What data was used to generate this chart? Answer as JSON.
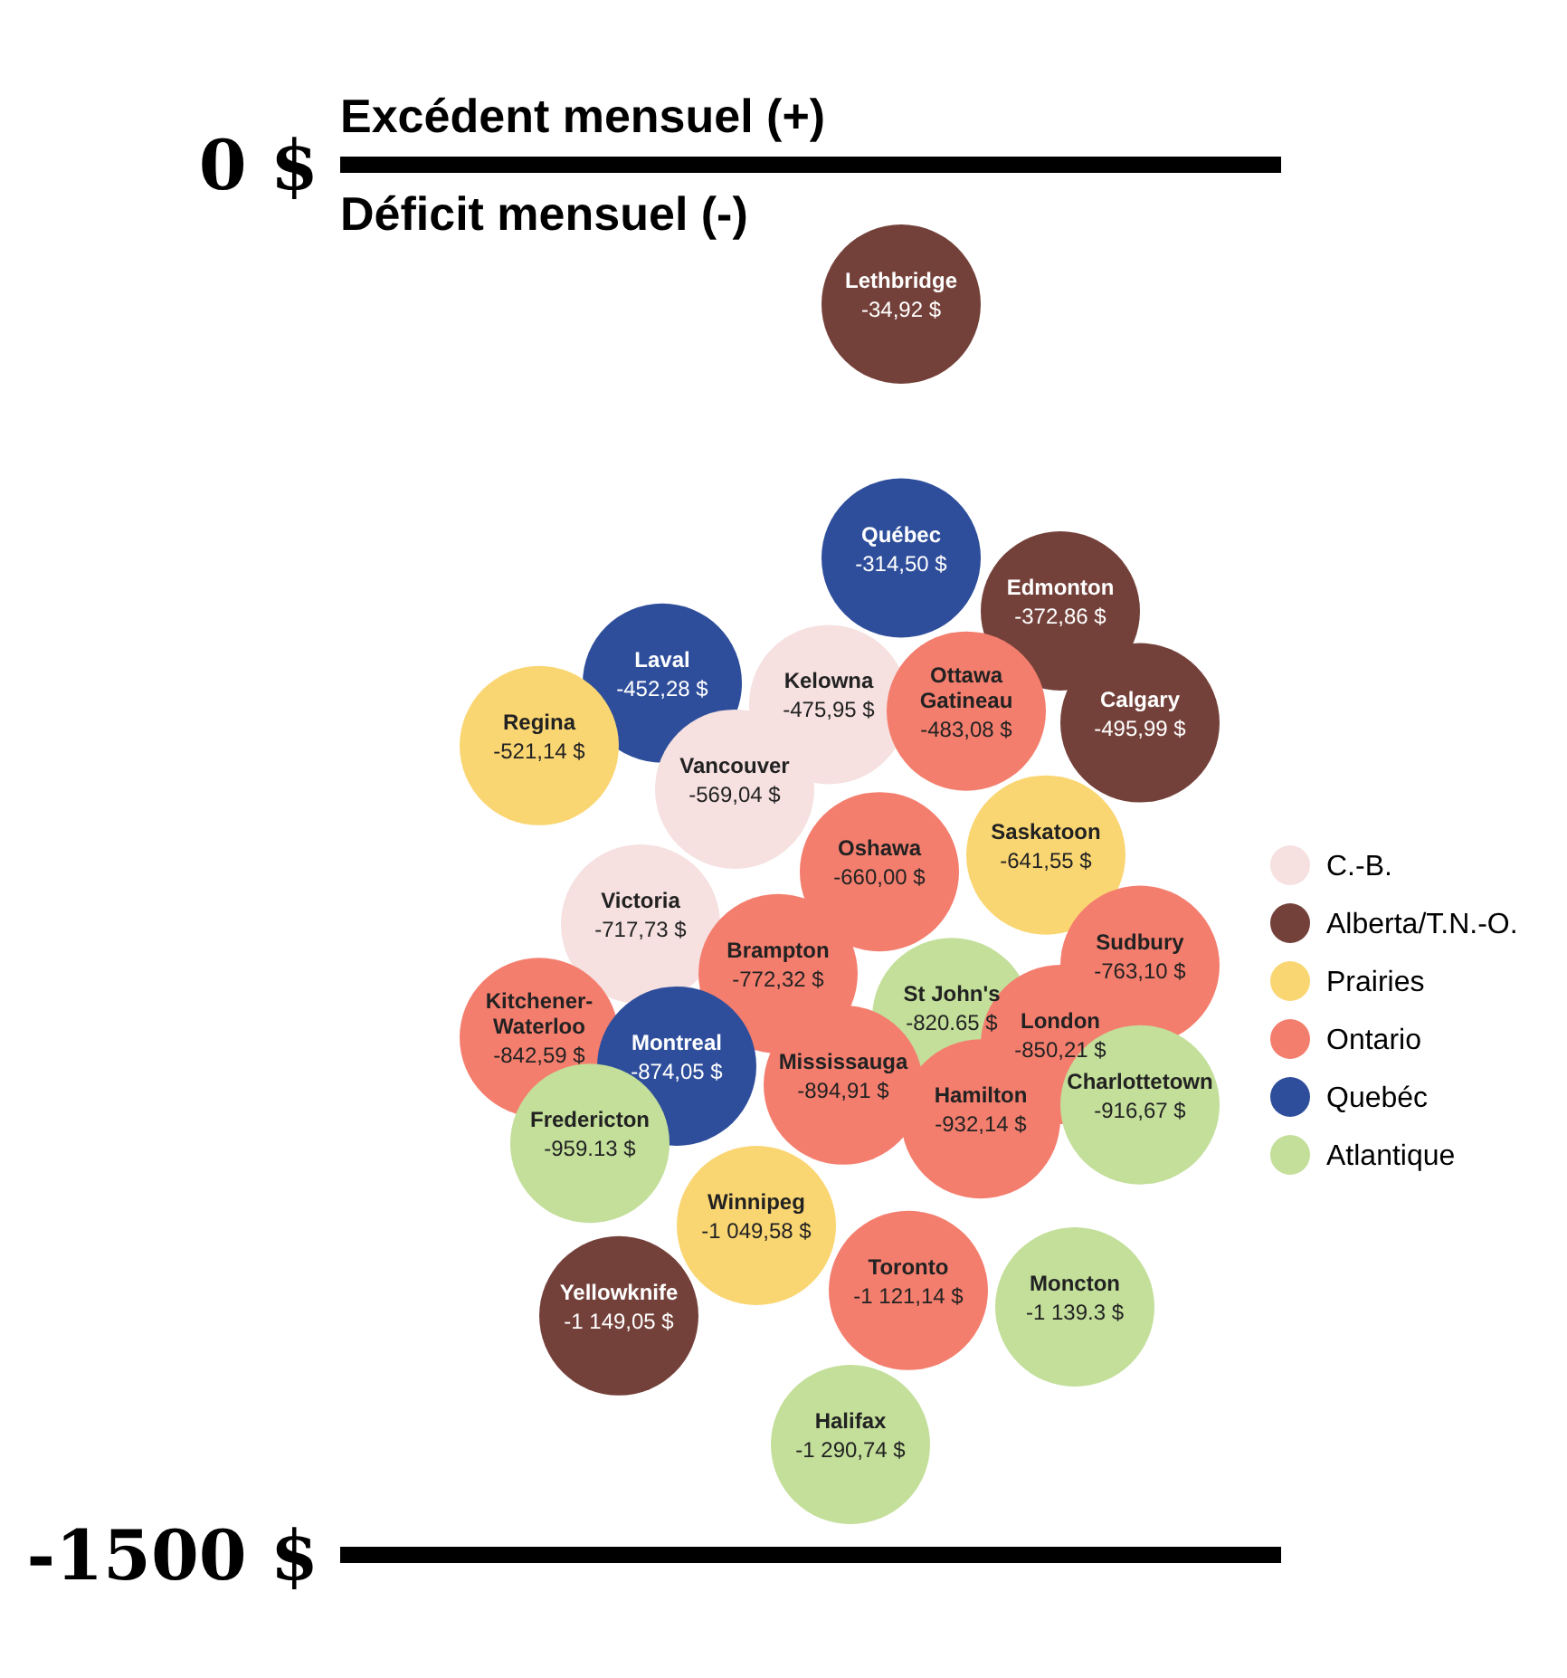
{
  "chart_data": {
    "type": "other",
    "annotations": [
      "0 $",
      "Excédent mensuel  (+)",
      "Déficit mensuel  (-)",
      "-1500 $"
    ],
    "legend": "right",
    "categories": [
      "Québec",
      "Lethbridge",
      "Edmonton",
      "Kelowna",
      "Laval",
      "Ottawa Gatineau",
      "Calgary",
      "Regina",
      "Vancouver",
      "Saskatoon",
      "Oshawa",
      "Victoria",
      "Sudbury",
      "Brampton",
      "St John's",
      "Kitchener-Waterloo",
      "Montreal",
      "London",
      "Mississauga",
      "Charlottetown",
      "Hamilton",
      "Fredericton",
      "Winnipeg",
      "Toronto",
      "Moncton",
      "Yellowknife",
      "Halifax"
    ],
    "series": [
      {
        "name": "C.-B.",
        "color": "#f6e0e0",
        "values": [
          null,
          null,
          null,
          -475.95,
          null,
          null,
          null,
          null,
          -569.04,
          null,
          null,
          -717.73,
          null,
          null,
          null,
          null,
          null,
          null,
          null,
          null,
          null,
          null,
          null,
          null,
          null,
          null,
          null
        ],
        "value_labels": [
          null,
          null,
          null,
          "-475,95 $",
          null,
          null,
          null,
          null,
          "-569,04 $",
          null,
          null,
          "-717,73 $",
          null,
          null,
          null,
          null,
          null,
          null,
          null,
          null,
          null,
          null,
          null,
          null,
          null,
          null,
          null
        ]
      },
      {
        "name": "Alberta/T.N.-O.",
        "color": "#74413a",
        "values": [
          null,
          -34.92,
          -372.86,
          null,
          null,
          null,
          -495.99,
          null,
          null,
          null,
          null,
          null,
          null,
          null,
          null,
          null,
          null,
          null,
          null,
          null,
          null,
          null,
          null,
          null,
          null,
          -1149.05,
          null
        ],
        "value_labels": [
          null,
          "-34,92 $",
          "-372,86 $",
          null,
          null,
          null,
          "-495,99 $",
          null,
          null,
          null,
          null,
          null,
          null,
          null,
          null,
          null,
          null,
          null,
          null,
          null,
          null,
          null,
          null,
          null,
          null,
          "-1 149,05 $",
          null
        ]
      },
      {
        "name": "Prairies",
        "color": "#fad673",
        "values": [
          null,
          null,
          null,
          null,
          null,
          null,
          null,
          -521.14,
          null,
          -641.55,
          null,
          null,
          null,
          null,
          null,
          null,
          null,
          null,
          null,
          null,
          null,
          null,
          -1049.58,
          null,
          null,
          null,
          null
        ],
        "value_labels": [
          null,
          null,
          null,
          null,
          null,
          null,
          null,
          "-521,14 $",
          null,
          "-641,55 $",
          null,
          null,
          null,
          null,
          null,
          null,
          null,
          null,
          null,
          null,
          null,
          null,
          "-1 049,58 $",
          null,
          null,
          null,
          null
        ]
      },
      {
        "name": "Ontario",
        "color": "#f47e6e",
        "values": [
          null,
          null,
          null,
          null,
          null,
          -483.08,
          null,
          null,
          null,
          null,
          -660.0,
          null,
          -763.1,
          -772.32,
          null,
          -842.59,
          null,
          -850.21,
          -894.91,
          null,
          -932.14,
          null,
          null,
          -1121.14,
          null,
          null,
          null
        ],
        "value_labels": [
          null,
          null,
          null,
          null,
          null,
          "-483,08 $",
          null,
          null,
          null,
          null,
          "-660,00 $",
          null,
          "-763,10 $",
          "-772,32 $",
          null,
          "-842,59 $",
          null,
          "-850,21 $",
          "-894,91 $",
          null,
          "-932,14 $",
          null,
          null,
          "-1 121,14 $",
          null,
          null,
          null
        ]
      },
      {
        "name": "Quebéc",
        "color": "#2e4e9b",
        "values": [
          -314.5,
          null,
          null,
          null,
          -452.28,
          null,
          null,
          null,
          null,
          null,
          null,
          null,
          null,
          null,
          null,
          null,
          -874.05,
          null,
          null,
          null,
          null,
          null,
          null,
          null,
          null,
          null,
          null
        ],
        "value_labels": [
          "-314,50 $",
          null,
          null,
          null,
          "-452,28 $",
          null,
          null,
          null,
          null,
          null,
          null,
          null,
          null,
          null,
          null,
          null,
          "-874,05 $",
          null,
          null,
          null,
          null,
          null,
          null,
          null,
          null,
          null,
          null
        ]
      },
      {
        "name": "Atlantique",
        "color": "#c3df9a",
        "values": [
          null,
          null,
          null,
          null,
          null,
          null,
          null,
          null,
          null,
          null,
          null,
          null,
          null,
          null,
          -820.65,
          null,
          null,
          null,
          null,
          -916.67,
          null,
          -959.13,
          null,
          null,
          -1139.3,
          null,
          -1290.74
        ],
        "value_labels": [
          null,
          null,
          null,
          null,
          null,
          null,
          null,
          null,
          null,
          null,
          null,
          null,
          null,
          null,
          "-820.65 $",
          null,
          null,
          null,
          null,
          "-916,67 $",
          null,
          "-959.13 $",
          null,
          null,
          "-1 139.3 $",
          null,
          "-1 290,74 $"
        ]
      }
    ]
  }
}
